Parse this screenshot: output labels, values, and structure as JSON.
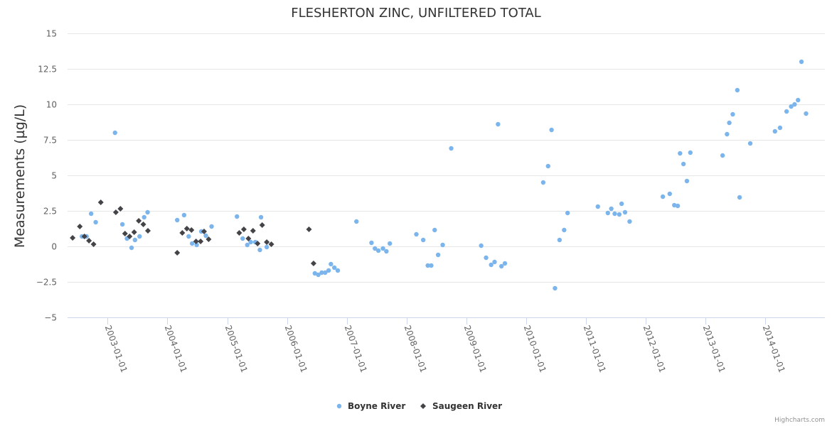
{
  "chart_data": {
    "type": "scatter",
    "title": "FLESHERTON ZINC, UNFILTERED TOTAL",
    "xlabel": "",
    "ylabel": "Measurements (µg/L)",
    "ylim": [
      -5,
      15
    ],
    "xlim": [
      "2002-05-01",
      "2014-12-31"
    ],
    "yticks": [
      -5,
      -2.5,
      0,
      2.5,
      5,
      7.5,
      10,
      12.5,
      15
    ],
    "ytick_labels": [
      "−5",
      "−2.5",
      "0",
      "2.5",
      "5",
      "7.5",
      "10",
      "12.5",
      "15"
    ],
    "xticks": [
      "2003-01-01",
      "2004-01-01",
      "2005-01-01",
      "2006-01-01",
      "2007-01-01",
      "2008-01-01",
      "2009-01-01",
      "2010-01-01",
      "2011-01-01",
      "2012-01-01",
      "2013-01-01",
      "2014-01-01"
    ],
    "grid": "horizontal",
    "legend_position": "bottom-center",
    "credits": "Highcharts.com",
    "series": [
      {
        "name": "Boyne River",
        "color": "#7cb5ec",
        "marker": "circle",
        "points": [
          [
            "2002-07-28",
            0.7
          ],
          [
            "2002-08-25",
            0.7
          ],
          [
            "2002-09-22",
            2.3
          ],
          [
            "2002-10-20",
            1.7
          ],
          [
            "2003-02-15",
            8.0
          ],
          [
            "2003-04-01",
            1.55
          ],
          [
            "2003-04-29",
            0.55
          ],
          [
            "2003-05-27",
            -0.1
          ],
          [
            "2003-06-17",
            0.45
          ],
          [
            "2003-07-15",
            0.7
          ],
          [
            "2003-08-12",
            2.05
          ],
          [
            "2003-09-02",
            2.4
          ],
          [
            "2004-03-01",
            1.85
          ],
          [
            "2004-04-12",
            2.2
          ],
          [
            "2004-05-10",
            0.7
          ],
          [
            "2004-05-31",
            0.2
          ],
          [
            "2004-06-28",
            0.1
          ],
          [
            "2004-07-26",
            1.05
          ],
          [
            "2004-08-23",
            0.75
          ],
          [
            "2004-09-27",
            1.4
          ],
          [
            "2005-03-01",
            2.1
          ],
          [
            "2005-04-05",
            0.55
          ],
          [
            "2005-05-03",
            0.1
          ],
          [
            "2005-05-24",
            0.3
          ],
          [
            "2005-06-21",
            0.3
          ],
          [
            "2005-07-19",
            -0.25
          ],
          [
            "2005-07-26",
            2.05
          ],
          [
            "2005-08-30",
            -0.05
          ],
          [
            "2006-06-20",
            -1.9
          ],
          [
            "2006-07-11",
            -2.0
          ],
          [
            "2006-08-01",
            -1.85
          ],
          [
            "2006-08-22",
            -1.85
          ],
          [
            "2006-09-12",
            -1.7
          ],
          [
            "2006-09-26",
            -1.25
          ],
          [
            "2006-10-17",
            -1.5
          ],
          [
            "2006-11-07",
            -1.7
          ],
          [
            "2007-03-01",
            1.75
          ],
          [
            "2007-06-01",
            0.25
          ],
          [
            "2007-06-22",
            -0.15
          ],
          [
            "2007-07-13",
            -0.3
          ],
          [
            "2007-08-10",
            -0.15
          ],
          [
            "2007-08-31",
            -0.35
          ],
          [
            "2007-09-21",
            0.2
          ],
          [
            "2008-03-01",
            0.85
          ],
          [
            "2008-04-12",
            0.45
          ],
          [
            "2008-05-10",
            -1.35
          ],
          [
            "2008-05-31",
            -1.35
          ],
          [
            "2008-06-21",
            1.15
          ],
          [
            "2008-07-12",
            -0.6
          ],
          [
            "2008-08-09",
            0.1
          ],
          [
            "2008-09-30",
            6.9
          ],
          [
            "2009-04-01",
            0.05
          ],
          [
            "2009-05-01",
            -0.8
          ],
          [
            "2009-06-01",
            -1.3
          ],
          [
            "2009-06-22",
            -1.1
          ],
          [
            "2009-07-13",
            8.6
          ],
          [
            "2009-08-03",
            -1.4
          ],
          [
            "2009-08-24",
            -1.2
          ],
          [
            "2010-04-15",
            4.5
          ],
          [
            "2010-05-15",
            5.65
          ],
          [
            "2010-06-05",
            8.2
          ],
          [
            "2010-06-26",
            -2.95
          ],
          [
            "2010-07-24",
            0.45
          ],
          [
            "2010-08-21",
            1.15
          ],
          [
            "2010-09-11",
            2.35
          ],
          [
            "2011-03-15",
            2.8
          ],
          [
            "2011-05-15",
            2.35
          ],
          [
            "2011-06-05",
            2.65
          ],
          [
            "2011-06-26",
            2.3
          ],
          [
            "2011-07-24",
            2.25
          ],
          [
            "2011-08-07",
            3.0
          ],
          [
            "2011-08-28",
            2.4
          ],
          [
            "2011-09-25",
            1.75
          ],
          [
            "2012-04-15",
            3.5
          ],
          [
            "2012-05-27",
            3.7
          ],
          [
            "2012-06-24",
            2.9
          ],
          [
            "2012-07-15",
            2.85
          ],
          [
            "2012-07-29",
            6.55
          ],
          [
            "2012-08-19",
            5.8
          ],
          [
            "2012-09-09",
            4.6
          ],
          [
            "2012-09-30",
            6.6
          ],
          [
            "2013-04-15",
            6.4
          ],
          [
            "2013-05-12",
            7.9
          ],
          [
            "2013-05-26",
            8.7
          ],
          [
            "2013-06-16",
            9.3
          ],
          [
            "2013-07-14",
            11.0
          ],
          [
            "2013-07-28",
            3.45
          ],
          [
            "2013-10-01",
            7.25
          ],
          [
            "2014-03-01",
            8.1
          ],
          [
            "2014-04-01",
            8.35
          ],
          [
            "2014-05-11",
            9.5
          ],
          [
            "2014-06-08",
            9.85
          ],
          [
            "2014-06-29",
            10.0
          ],
          [
            "2014-07-20",
            10.3
          ],
          [
            "2014-08-10",
            13.0
          ],
          [
            "2014-09-07",
            9.35
          ]
        ]
      },
      {
        "name": "Saugeen River",
        "color": "#434348",
        "marker": "diamond",
        "points": [
          [
            "2002-06-01",
            0.6
          ],
          [
            "2002-07-15",
            1.4
          ],
          [
            "2002-08-12",
            0.7
          ],
          [
            "2002-09-09",
            0.4
          ],
          [
            "2002-10-07",
            0.15
          ],
          [
            "2002-11-20",
            3.1
          ],
          [
            "2003-02-20",
            2.4
          ],
          [
            "2003-03-20",
            2.65
          ],
          [
            "2003-04-17",
            0.9
          ],
          [
            "2003-05-15",
            0.7
          ],
          [
            "2003-06-12",
            1.0
          ],
          [
            "2003-07-10",
            1.8
          ],
          [
            "2003-08-07",
            1.55
          ],
          [
            "2003-09-04",
            1.1
          ],
          [
            "2004-03-01",
            -0.45
          ],
          [
            "2004-04-01",
            0.95
          ],
          [
            "2004-04-29",
            1.25
          ],
          [
            "2004-05-27",
            1.15
          ],
          [
            "2004-06-24",
            0.35
          ],
          [
            "2004-07-22",
            0.35
          ],
          [
            "2004-08-12",
            1.05
          ],
          [
            "2004-09-09",
            0.5
          ],
          [
            "2005-03-15",
            0.95
          ],
          [
            "2005-04-12",
            1.2
          ],
          [
            "2005-05-10",
            0.55
          ],
          [
            "2005-06-07",
            1.1
          ],
          [
            "2005-07-05",
            0.2
          ],
          [
            "2005-08-02",
            1.5
          ],
          [
            "2005-08-30",
            0.3
          ],
          [
            "2005-09-27",
            0.15
          ],
          [
            "2006-05-15",
            1.2
          ],
          [
            "2006-06-12",
            -1.2
          ]
        ]
      }
    ]
  }
}
